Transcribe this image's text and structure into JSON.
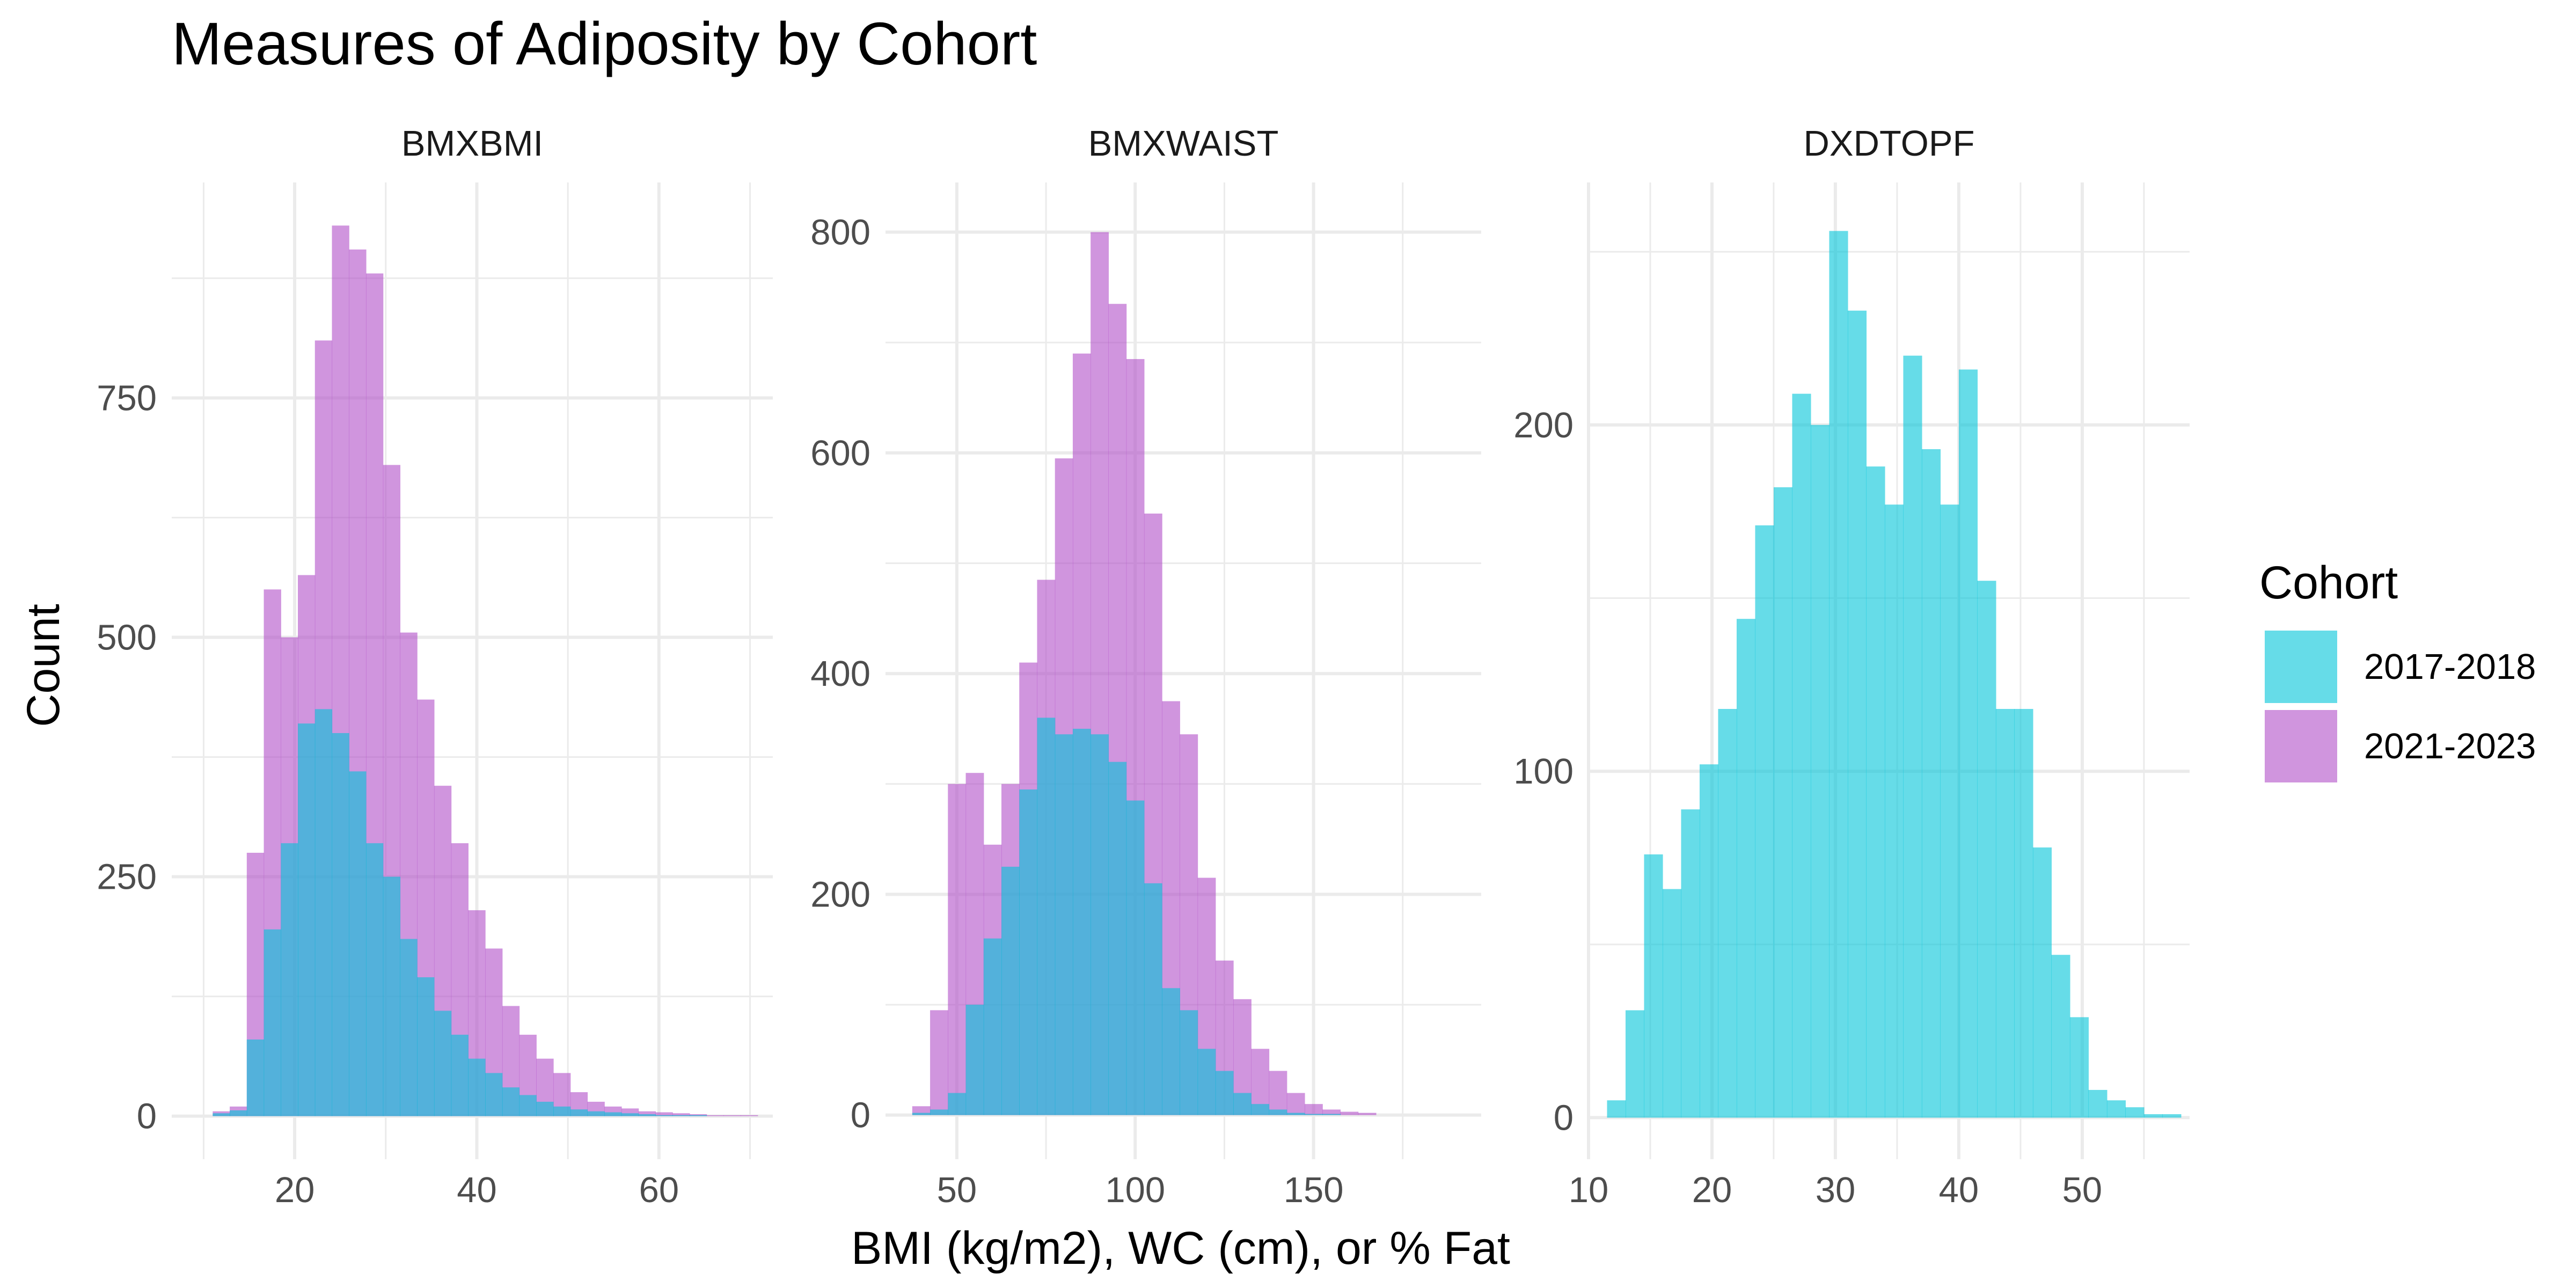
{
  "chart_data": {
    "type": "histogram",
    "title": "Measures of Adiposity by Cohort",
    "xlabel": "BMI (kg/m2), WC (cm), or % Fat",
    "ylabel": "Count",
    "legend": {
      "title": "Cohort",
      "position": "right",
      "entries": [
        {
          "name": "2017-2018",
          "color": "#00C5D8"
        },
        {
          "name": "2021-2023",
          "color": "#B04FC8"
        }
      ]
    },
    "grid": true,
    "panels": [
      {
        "name": "BMXBMI",
        "xlim": [
          6.5,
          72.5
        ],
        "ylim": [
          -45,
          975
        ],
        "xticks": [
          20,
          40,
          60
        ],
        "yticks": [
          0,
          250,
          500,
          750
        ],
        "bin_width": 1.87,
        "series": [
          {
            "name": "2021-2023",
            "bins_start": 11.0,
            "values": [
              5,
              10,
              275,
              550,
              500,
              565,
              810,
              930,
              905,
              880,
              680,
              505,
              435,
              345,
              285,
              215,
              175,
              115,
              85,
              60,
              45,
              25,
              15,
              10,
              8,
              5,
              4,
              3,
              2,
              1,
              1,
              1
            ]
          },
          {
            "name": "2017-2018",
            "bins_start": 11.0,
            "values": [
              3,
              6,
              80,
              195,
              285,
              410,
              425,
              400,
              360,
              285,
              250,
              185,
              145,
              110,
              85,
              60,
              45,
              30,
              22,
              15,
              10,
              7,
              5,
              4,
              3,
              2,
              1,
              1,
              1,
              0,
              0,
              0
            ]
          }
        ]
      },
      {
        "name": "BMXWAIST",
        "xlim": [
          30,
          197
        ],
        "ylim": [
          -40,
          845
        ],
        "xticks": [
          50,
          100,
          150
        ],
        "yticks": [
          0,
          200,
          400,
          600,
          800
        ],
        "bin_width": 5.0,
        "series": [
          {
            "name": "2021-2023",
            "bins_start": 37.5,
            "values": [
              8,
              95,
              300,
              310,
              245,
              300,
              410,
              485,
              595,
              690,
              800,
              735,
              685,
              545,
              375,
              345,
              215,
              140,
              105,
              60,
              40,
              20,
              10,
              5,
              3,
              2
            ]
          },
          {
            "name": "2017-2018",
            "bins_start": 37.5,
            "values": [
              2,
              5,
              20,
              100,
              160,
              225,
              295,
              360,
              345,
              350,
              345,
              320,
              285,
              210,
              115,
              95,
              60,
              40,
              20,
              10,
              5,
              2,
              1,
              1,
              0,
              0
            ]
          }
        ]
      },
      {
        "name": "DXDTOPF",
        "xlim": [
          10.0,
          58.7
        ],
        "ylim": [
          -12,
          270
        ],
        "xticks": [
          10,
          20,
          30,
          40,
          50
        ],
        "yticks": [
          0,
          100,
          200
        ],
        "bin_width": 1.5,
        "series": [
          {
            "name": "2017-2018",
            "bins_start": 11.5,
            "values": [
              5,
              31,
              76,
              66,
              89,
              102,
              118,
              144,
              171,
              182,
              209,
              200,
              256,
              233,
              188,
              177,
              220,
              193,
              177,
              216,
              155,
              118,
              118,
              78,
              47,
              29,
              8,
              5,
              3,
              1,
              1
            ]
          }
        ]
      }
    ]
  }
}
